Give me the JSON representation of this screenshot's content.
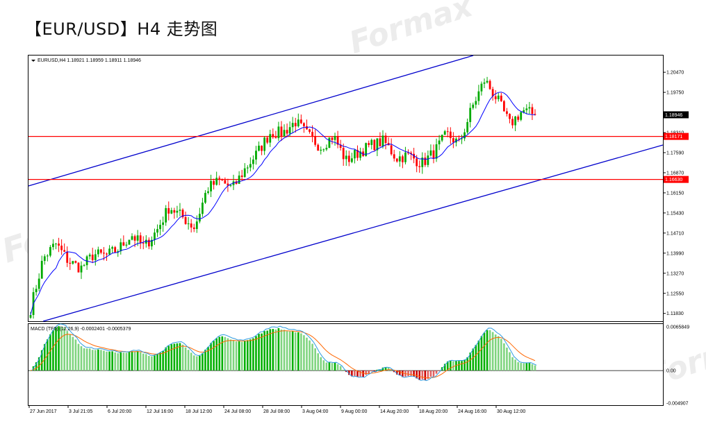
{
  "page_title": "【EUR/USD】H4 走势图",
  "watermark": "Formax",
  "chart_data": [
    {
      "type": "candlestick",
      "header": "EURUSD,H4  1.18921 1.18959 1.18911 1.18946",
      "ylim": [
        1.1155,
        1.2107
      ],
      "y_ticks": [
        "1.20470",
        "1.19750",
        "1.18310",
        "1.17590",
        "1.16870",
        "1.16150",
        "1.15430",
        "1.14710",
        "1.13990",
        "1.13270",
        "1.12550",
        "1.11830"
      ],
      "x_ticks": [
        "27 Jun 2017",
        "3 Jul 21:05",
        "6 Jul 20:00",
        "12 Jul 16:00",
        "18 Jul 12:00",
        "24 Jul 08:00",
        "28 Jul 08:00",
        "3 Aug 04:00",
        "9 Aug 00:00",
        "14 Aug 20:00",
        "18 Aug 20:00",
        "24 Aug 16:00",
        "30 Aug 12:00"
      ],
      "current_price": {
        "value": 1.18946,
        "label": "1.18946"
      },
      "horizontal_lines": [
        {
          "value": 1.18171,
          "label": "1.18171",
          "color": "#ff0000"
        },
        {
          "value": 1.1663,
          "label": "1.16630",
          "color": "#ff0000"
        }
      ],
      "channel_lines": {
        "color": "#0000cc"
      },
      "colors": {
        "bull": "#00aa00",
        "bear": "#ff0000",
        "ma": "#0000ff"
      },
      "price_path": [
        1.12,
        1.138,
        1.1432,
        1.137,
        1.1345,
        1.1395,
        1.139,
        1.1415,
        1.1465,
        1.142,
        1.148,
        1.1565,
        1.153,
        1.149,
        1.163,
        1.166,
        1.163,
        1.17,
        1.176,
        1.183,
        1.183,
        1.187,
        1.182,
        1.178,
        1.182,
        1.173,
        1.176,
        1.1785,
        1.18,
        1.174,
        1.175,
        1.172,
        1.176,
        1.1825,
        1.179,
        1.192,
        1.202,
        1.195,
        1.186,
        1.191,
        1.1895
      ]
    },
    {
      "type": "histogram",
      "header": "MACD (TF0) (12,26,9) -0.0002401 -0.0005379",
      "ylim": [
        -0.0052,
        0.007
      ],
      "y_ticks": [
        "0.0065849",
        "0.00",
        "-0.004907"
      ],
      "series": [
        {
          "name": "MACD",
          "color": "histogram"
        },
        {
          "name": "signal",
          "color": "#ff6600"
        },
        {
          "name": "line",
          "color": "#2e9be0"
        }
      ]
    }
  ]
}
